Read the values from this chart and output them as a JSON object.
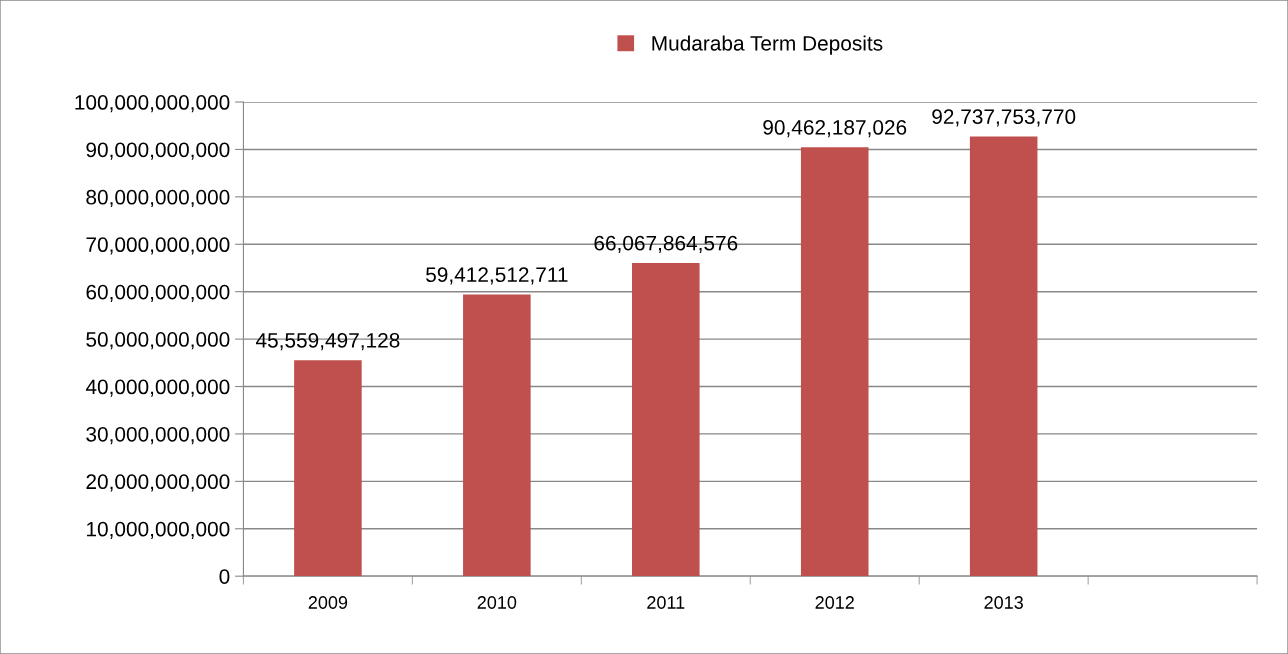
{
  "chart_data": {
    "type": "bar",
    "categories": [
      "2009",
      "2010",
      "2011",
      "2012",
      "2013",
      null
    ],
    "series": [
      {
        "name": "Mudaraba Term Deposits",
        "color": "#c0504d",
        "values": [
          45559497128,
          59412512711,
          66067864576,
          90462187026,
          92737753770,
          null
        ],
        "value_labels": [
          "45,559,497,128",
          "59,412,512,711",
          "66,067,864,576",
          "90,462,187,026",
          "92,737,753,770",
          null
        ]
      }
    ],
    "ylim": [
      0,
      100000000000
    ],
    "yticks": [
      0,
      {
        "value": 10000000000,
        "label": "10,000,000,000"
      },
      {
        "value": 20000000000,
        "label": "20,000,000,000"
      },
      {
        "value": 30000000000,
        "label": "30,000,000,000"
      },
      {
        "value": 40000000000,
        "label": "40,000,000,000"
      },
      {
        "value": 50000000000,
        "label": "50,000,000,000"
      },
      {
        "value": 60000000000,
        "label": "60,000,000,000"
      },
      {
        "value": 70000000000,
        "label": "70,000,000,000"
      },
      {
        "value": 80000000000,
        "label": "80,000,000,000"
      },
      {
        "value": 90000000000,
        "label": "90,000,000,000"
      },
      {
        "value": 100000000000,
        "label": "100,000,000,000"
      }
    ],
    "grid": "y",
    "legend": "top"
  }
}
